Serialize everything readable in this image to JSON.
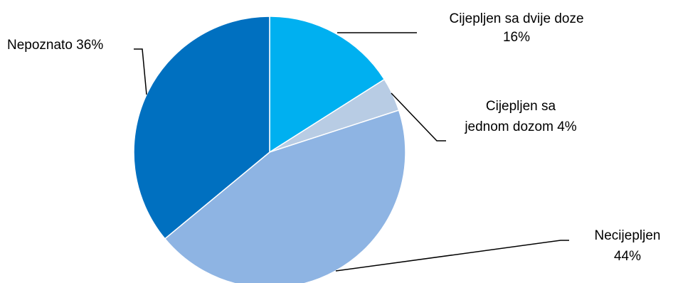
{
  "chart_data": {
    "type": "pie",
    "title": "",
    "start_angle_deg": 0,
    "direction": "clockwise",
    "slices": [
      {
        "label_lines": [
          "Cijepljen sa dvije doze",
          "16%"
        ],
        "value": 16,
        "color": "#00B0F0"
      },
      {
        "label_lines": [
          "Cijepljen sa",
          "jednom dozom 4%"
        ],
        "value": 4,
        "color": "#B8CCE4"
      },
      {
        "label_lines": [
          "Necijepljen",
          "44%"
        ],
        "value": 44,
        "color": "#8EB4E3"
      },
      {
        "label_lines": [
          "Nepoznato 36%"
        ],
        "value": 36,
        "color": "#0070C0"
      }
    ]
  }
}
